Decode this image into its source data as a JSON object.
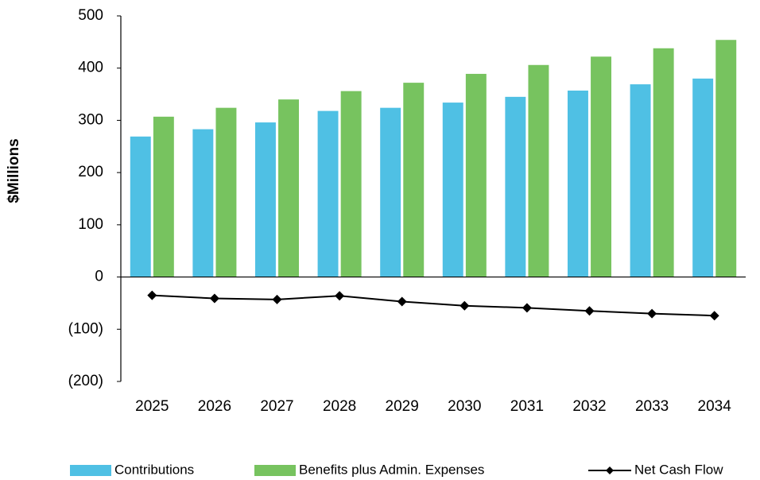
{
  "chart_data": {
    "type": "bar",
    "y_label": "$Millions",
    "categories": [
      "2025",
      "2026",
      "2027",
      "2028",
      "2029",
      "2030",
      "2031",
      "2032",
      "2033",
      "2034"
    ],
    "series": [
      {
        "name": "Contributions",
        "type": "bar",
        "color": "#4fc0e4",
        "values": [
          269,
          283,
          296,
          318,
          324,
          334,
          345,
          357,
          369,
          380
        ]
      },
      {
        "name": "Benefits plus Admin. Expenses",
        "type": "bar",
        "color": "#77c35f",
        "values": [
          307,
          324,
          340,
          356,
          372,
          389,
          406,
          422,
          438,
          454
        ]
      },
      {
        "name": "Net Cash Flow",
        "type": "line",
        "color": "#000000",
        "values": [
          -35,
          -41,
          -43,
          -36,
          -47,
          -55,
          -59,
          -65,
          -70,
          -74
        ]
      }
    ],
    "ylim": [
      -200,
      500
    ],
    "yticks": [
      {
        "value": -200,
        "label": "(200)"
      },
      {
        "value": -100,
        "label": "(100)"
      },
      0,
      100,
      200,
      300,
      400,
      500
    ],
    "legend": "bottom"
  }
}
